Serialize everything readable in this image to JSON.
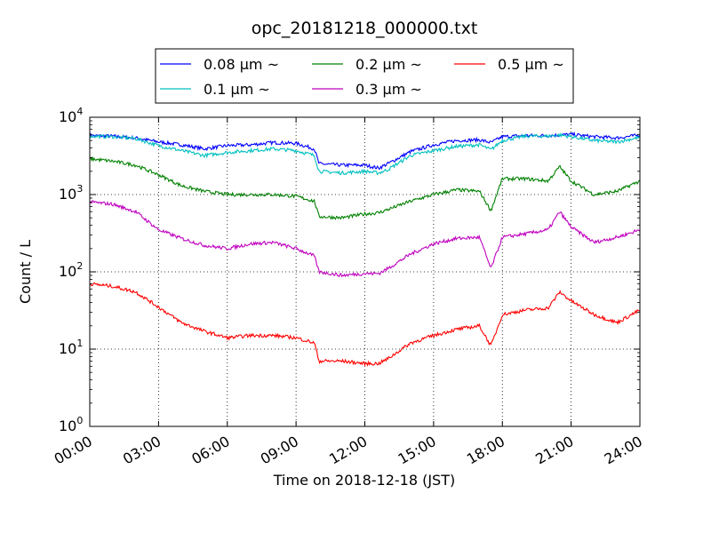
{
  "chart_data": {
    "type": "line",
    "title": "opc_20181218_000000.txt",
    "xlabel": "Time on 2018-12-18 (JST)",
    "ylabel": "Count / L",
    "yscale": "log",
    "ylim": [
      1,
      10000
    ],
    "xlim": [
      "00:00",
      "24:00"
    ],
    "x_tick_labels": [
      "00:00",
      "03:00",
      "06:00",
      "09:00",
      "12:00",
      "15:00",
      "18:00",
      "21:00",
      "24:00"
    ],
    "y_tick_labels": [
      {
        "base": "10",
        "exp": "0"
      },
      {
        "base": "10",
        "exp": "1"
      },
      {
        "base": "10",
        "exp": "2"
      },
      {
        "base": "10",
        "exp": "3"
      },
      {
        "base": "10",
        "exp": "4"
      }
    ],
    "grid": true,
    "legend_position": "top-center",
    "x_hours": [
      0,
      1,
      2,
      3,
      4,
      5,
      6,
      7,
      8,
      9,
      9.8,
      10,
      11,
      12,
      12.6,
      13,
      14,
      15,
      16,
      17,
      17.5,
      18,
      19,
      20,
      20.5,
      21,
      22,
      23,
      24
    ],
    "series": [
      {
        "name": "0.08 µm ~",
        "color": "#0000ff",
        "values": [
          5800,
          5700,
          5400,
          4800,
          4400,
          3900,
          4300,
          4400,
          4700,
          4600,
          3900,
          2500,
          2400,
          2400,
          2200,
          2500,
          3600,
          4400,
          5000,
          5100,
          4700,
          5600,
          5800,
          5800,
          5900,
          6000,
          5600,
          5400,
          5900
        ]
      },
      {
        "name": "0.1 µm ~",
        "color": "#00bfbf",
        "values": [
          5700,
          5600,
          5300,
          4300,
          3700,
          3200,
          3500,
          3700,
          3900,
          3700,
          3200,
          2000,
          1900,
          2000,
          1900,
          2100,
          3200,
          3700,
          4200,
          4400,
          3800,
          5000,
          5700,
          5700,
          5900,
          5600,
          5000,
          4800,
          5500
        ]
      },
      {
        "name": "0.2 µm ~",
        "color": "#008000",
        "values": [
          2900,
          2700,
          2400,
          1800,
          1300,
          1100,
          1000,
          1000,
          1000,
          950,
          820,
          520,
          500,
          560,
          580,
          640,
          820,
          1000,
          1150,
          1100,
          620,
          1600,
          1600,
          1500,
          2300,
          1500,
          1000,
          1100,
          1500
        ]
      },
      {
        "name": "0.3 µm ~",
        "color": "#bf00bf",
        "values": [
          800,
          750,
          600,
          350,
          270,
          220,
          200,
          230,
          240,
          200,
          160,
          100,
          90,
          95,
          95,
          110,
          170,
          230,
          270,
          280,
          110,
          280,
          310,
          350,
          600,
          380,
          240,
          280,
          350
        ]
      },
      {
        "name": "0.5 µm ~",
        "color": "#ff0000",
        "values": [
          70,
          65,
          55,
          35,
          22,
          17,
          14,
          15,
          15,
          14,
          12,
          7,
          7,
          6.5,
          6.5,
          7.5,
          12,
          15,
          18,
          20,
          11,
          28,
          32,
          34,
          55,
          42,
          28,
          22,
          32
        ]
      }
    ]
  }
}
